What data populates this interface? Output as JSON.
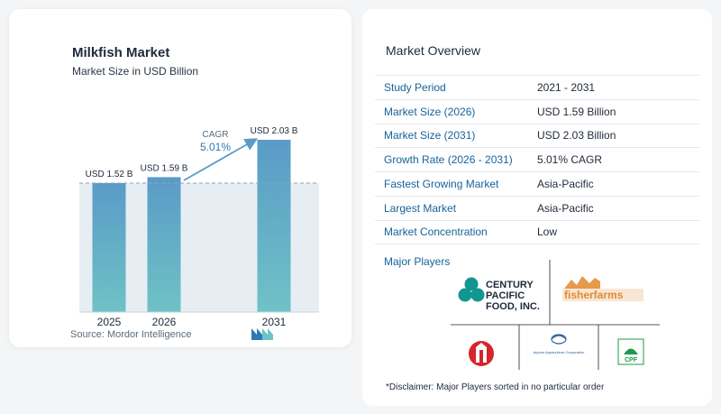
{
  "chart_data": {
    "type": "bar",
    "title": "Milkfish Market",
    "subtitle": "Market Size in USD Billion",
    "categories": [
      "2025",
      "2026",
      "2031"
    ],
    "values": [
      1.52,
      1.59,
      2.03
    ],
    "value_labels": [
      "USD 1.52 B",
      "USD 1.59 B",
      "USD 2.03 B"
    ],
    "cagr_label": "CAGR",
    "cagr_value": "5.01%",
    "ylim": [
      0,
      2.03
    ],
    "grid": false,
    "colors": {
      "bar_top": "#5a9bc7",
      "bar_bottom": "#6fc2c6",
      "band": "#e6eef4",
      "arrow": "#5a9bc7",
      "cagr_text": "#2f7ab3"
    }
  },
  "source": "Source:  Mordor Intelligence",
  "overview": {
    "title": "Market Overview",
    "rows": [
      {
        "label": "Study Period",
        "value": "2021 - 2031"
      },
      {
        "label": "Market Size (2026)",
        "value": "USD 1.59 Billion"
      },
      {
        "label": "Market Size (2031)",
        "value": "USD 2.03 Billion"
      },
      {
        "label": "Growth Rate (2026 - 2031)",
        "value": "5.01% CAGR"
      },
      {
        "label": "Fastest Growing Market",
        "value": "Asia-Pacific"
      },
      {
        "label": "Largest Market",
        "value": "Asia-Pacific"
      },
      {
        "label": "Market Concentration",
        "value": "Low"
      }
    ],
    "players_label": "Major Players",
    "players": {
      "century": [
        "CENTURY",
        "PACIFIC",
        "FOOD, INC."
      ],
      "fisherfarms": "fisherfarms",
      "aquaculture": "Aquino Aquaculture Corporation",
      "cpf": "CPF"
    },
    "disclaimer": "*Disclaimer: Major Players sorted in no particular order"
  }
}
